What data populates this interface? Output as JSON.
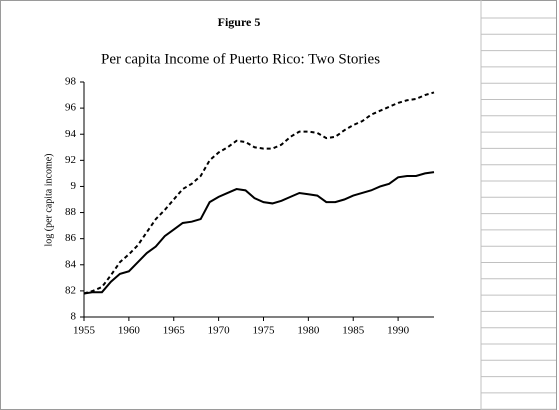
{
  "figure_label": "Figure 5",
  "chart_data": {
    "type": "line",
    "title": "Per capita Income of Puerto Rico: Two Stories",
    "y_label": "log (per capita income)",
    "x": [
      1955,
      1956,
      1957,
      1958,
      1959,
      1960,
      1961,
      1962,
      1963,
      1964,
      1965,
      1966,
      1967,
      1968,
      1969,
      1970,
      1971,
      1972,
      1973,
      1974,
      1975,
      1976,
      1977,
      1978,
      1979,
      1980,
      1981,
      1982,
      1983,
      1984,
      1985,
      1986,
      1987,
      1988,
      1989,
      1990,
      1991,
      1992,
      1993,
      1994
    ],
    "series": [
      {
        "color": "#000000",
        "dash": false,
        "values": [
          8.18,
          8.19,
          8.19,
          8.27,
          8.33,
          8.35,
          8.42,
          8.49,
          8.54,
          8.62,
          8.67,
          8.72,
          8.73,
          8.75,
          8.88,
          8.92,
          8.95,
          8.98,
          8.97,
          8.91,
          8.88,
          8.87,
          8.89,
          8.92,
          8.95,
          8.94,
          8.93,
          8.88,
          8.88,
          8.9,
          8.93,
          8.95,
          8.97,
          9.0,
          9.02,
          9.07,
          9.08,
          9.08,
          9.1,
          9.11
        ]
      },
      {
        "color": "#000000",
        "dash": true,
        "values": [
          8.18,
          8.2,
          8.23,
          8.32,
          8.42,
          8.48,
          8.55,
          8.65,
          8.75,
          8.82,
          8.9,
          8.98,
          9.02,
          9.08,
          9.2,
          9.26,
          9.3,
          9.35,
          9.34,
          9.3,
          9.29,
          9.29,
          9.32,
          9.38,
          9.42,
          9.42,
          9.41,
          9.37,
          9.38,
          9.43,
          9.47,
          9.5,
          9.55,
          9.58,
          9.61,
          9.64,
          9.66,
          9.67,
          9.7,
          9.72
        ]
      }
    ],
    "xlim": [
      1955,
      1994
    ],
    "xticks": [
      1955,
      1960,
      1965,
      1970,
      1975,
      1980,
      1985,
      1990
    ],
    "ylim": [
      8,
      9.8
    ],
    "yticks": [
      8,
      {
        "value": 8.2,
        "label": "82"
      },
      {
        "value": 8.4,
        "label": "84"
      },
      {
        "value": 8.6,
        "label": "86"
      },
      {
        "value": 8.8,
        "label": "88"
      },
      9,
      {
        "value": 9.2,
        "label": "92"
      },
      {
        "value": 9.4,
        "label": "94"
      },
      {
        "value": 9.6,
        "label": "96"
      },
      {
        "value": 9.8,
        "label": "98"
      }
    ]
  }
}
